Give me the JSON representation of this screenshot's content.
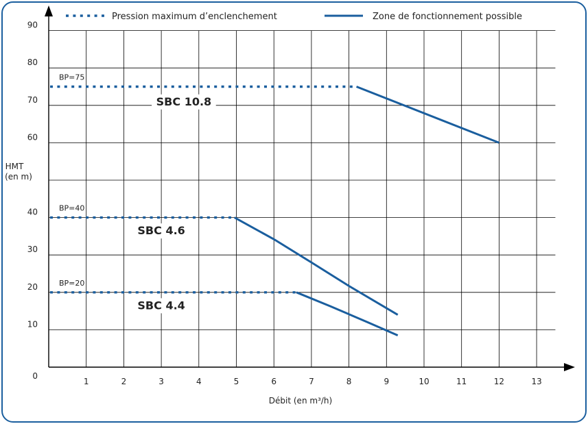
{
  "chart_data": {
    "type": "line",
    "ylabel_line1": "HMT",
    "ylabel_line2": "(en m)",
    "xlabel": "Débit (en m³/h)",
    "xlim": [
      0,
      13
    ],
    "ylim": [
      0,
      90
    ],
    "x_ticks": [
      1,
      2,
      3,
      4,
      5,
      6,
      7,
      8,
      9,
      10,
      11,
      12,
      13
    ],
    "y_ticks": [
      0,
      10,
      20,
      30,
      40,
      60,
      70,
      80,
      90
    ],
    "grid": true,
    "legend_position": "top",
    "legend": [
      {
        "label": "Pression maximum d’enclenchement",
        "style": "dotted"
      },
      {
        "label": "Zone de fonctionnement possible",
        "style": "solid"
      }
    ],
    "series_color": "#1a5e9e",
    "series": [
      {
        "model": "SBC 10.8",
        "bp_label": "BP=75",
        "dotted": {
          "x": [
            0,
            8.2
          ],
          "y": [
            75,
            75
          ]
        },
        "solid": {
          "x": [
            8.2,
            12.0
          ],
          "y": [
            75,
            60
          ]
        },
        "label_at": {
          "x": 3.6,
          "y": 70
        }
      },
      {
        "model": "SBC 4.6",
        "bp_label": "BP=40",
        "dotted": {
          "x": [
            0,
            4.95
          ],
          "y": [
            40,
            40
          ]
        },
        "solid": {
          "x": [
            4.95,
            6.0,
            7.0,
            8.0,
            9.3
          ],
          "y": [
            40,
            34.2,
            28,
            21.7,
            14
          ]
        },
        "label_at": {
          "x": 3.0,
          "y": 35.5
        }
      },
      {
        "model": "SBC 4.4",
        "bp_label": "BP=20",
        "dotted": {
          "x": [
            0,
            6.6
          ],
          "y": [
            20,
            20
          ]
        },
        "solid": {
          "x": [
            6.6,
            7.5,
            8.5,
            9.3
          ],
          "y": [
            20,
            16.3,
            12,
            8.5
          ]
        },
        "label_at": {
          "x": 3.0,
          "y": 15.5
        }
      }
    ]
  }
}
